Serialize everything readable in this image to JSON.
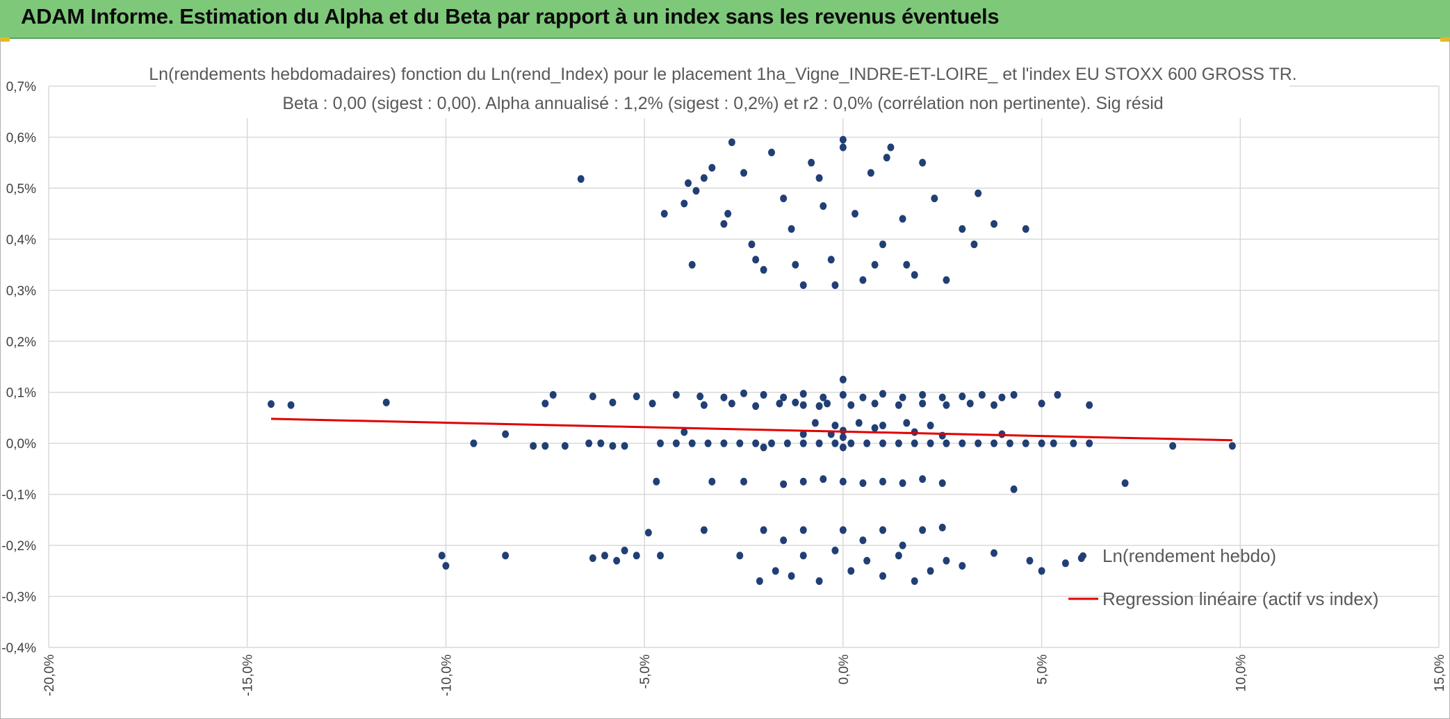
{
  "banner": {
    "title": "ADAM Informe. Estimation du Alpha et du Beta par rapport à un index sans les revenus éventuels"
  },
  "chart_data": {
    "type": "scatter",
    "title": "Ln(rendements hebdomadaires) fonction du Ln(rend_Index) pour le placement 1ha_Vigne_INDRE-ET-LOIRE_ et l'index EU STOXX 600 GROSS TR.",
    "subtitle": "Beta : 0,00 (sigest : 0,00). Alpha annualisé : 1,2% (sigest : 0,2%) et r2 : 0,0% (corrélation non pertinente). Sig résid",
    "xlim": [
      -0.2,
      0.15
    ],
    "ylim": [
      -0.004,
      0.007
    ],
    "x_ticks": [
      -0.2,
      -0.15,
      -0.1,
      -0.05,
      0.0,
      0.05,
      0.1,
      0.15
    ],
    "x_tick_labels": [
      "-20,0%",
      "-15,0%",
      "-10,0%",
      "-5,0%",
      "0,0%",
      "5,0%",
      "10,0%",
      "15,0%"
    ],
    "y_ticks": [
      0.007,
      0.006,
      0.005,
      0.004,
      0.003,
      0.002,
      0.001,
      0.0,
      -0.001,
      -0.002,
      -0.003,
      -0.004
    ],
    "y_tick_labels": [
      "0,7%",
      "0,6%",
      "0,5%",
      "0,4%",
      "0,3%",
      "0,2%",
      "0,1%",
      "0,0%",
      "-0,1%",
      "-0,2%",
      "-0,3%",
      "-0,4%"
    ],
    "grid": true,
    "legend_position": "bottom-right",
    "colors": {
      "points": "#213f74",
      "regression": "#e00000"
    },
    "series": [
      {
        "name": "Ln(rendement hebdo)",
        "kind": "scatter",
        "points": [
          [
            -0.144,
            0.00077
          ],
          [
            -0.139,
            0.00075
          ],
          [
            -0.115,
            0.0008
          ],
          [
            -0.075,
            0.00078
          ],
          [
            -0.073,
            0.00095
          ],
          [
            -0.063,
            0.00092
          ],
          [
            -0.058,
            0.0008
          ],
          [
            -0.052,
            0.00092
          ],
          [
            -0.048,
            0.00078
          ],
          [
            -0.042,
            0.00095
          ],
          [
            -0.036,
            0.00092
          ],
          [
            -0.03,
            0.0009
          ],
          [
            -0.025,
            0.00098
          ],
          [
            -0.02,
            0.00095
          ],
          [
            -0.015,
            0.0009
          ],
          [
            -0.01,
            0.00097
          ],
          [
            -0.005,
            0.0009
          ],
          [
            0.0,
            0.00095
          ],
          [
            0.005,
            0.0009
          ],
          [
            0.01,
            0.00097
          ],
          [
            0.015,
            0.0009
          ],
          [
            0.02,
            0.00095
          ],
          [
            0.025,
            0.0009
          ],
          [
            0.03,
            0.00092
          ],
          [
            0.035,
            0.00095
          ],
          [
            0.04,
            0.0009
          ],
          [
            0.043,
            0.00095
          ],
          [
            0.05,
            0.00078
          ],
          [
            0.054,
            0.00095
          ],
          [
            0.062,
            0.00075
          ],
          [
            -0.035,
            0.00075
          ],
          [
            -0.028,
            0.00078
          ],
          [
            -0.022,
            0.00073
          ],
          [
            -0.016,
            0.00078
          ],
          [
            -0.01,
            0.00075
          ],
          [
            -0.004,
            0.00078
          ],
          [
            0.002,
            0.00075
          ],
          [
            0.008,
            0.00078
          ],
          [
            0.014,
            0.00075
          ],
          [
            0.02,
            0.00078
          ],
          [
            0.026,
            0.00075
          ],
          [
            0.032,
            0.00078
          ],
          [
            0.038,
            0.00075
          ],
          [
            -0.012,
            0.0008
          ],
          [
            -0.006,
            0.00073
          ],
          [
            0.0,
            0.00125
          ],
          [
            -0.007,
            0.0004
          ],
          [
            -0.002,
            0.00035
          ],
          [
            0.004,
            0.0004
          ],
          [
            0.01,
            0.00035
          ],
          [
            0.016,
            0.0004
          ],
          [
            0.022,
            0.00035
          ],
          [
            0.0,
            0.00025
          ],
          [
            0.008,
            0.0003
          ],
          [
            0.018,
            0.00022
          ],
          [
            -0.003,
            0.00018
          ],
          [
            -0.01,
            0.00018
          ],
          [
            0.025,
            0.00015
          ],
          [
            0.0,
            0.00012
          ],
          [
            -0.093,
            0.0
          ],
          [
            -0.085,
            0.00018
          ],
          [
            -0.078,
            -5e-05
          ],
          [
            -0.075,
            -5e-05
          ],
          [
            -0.07,
            -5e-05
          ],
          [
            -0.064,
            0.0
          ],
          [
            -0.061,
            0.0
          ],
          [
            -0.058,
            -5e-05
          ],
          [
            -0.055,
            -5e-05
          ],
          [
            -0.046,
            0.0
          ],
          [
            -0.042,
            0.0
          ],
          [
            -0.038,
            0.0
          ],
          [
            -0.034,
            0.0
          ],
          [
            -0.03,
            0.0
          ],
          [
            -0.026,
            0.0
          ],
          [
            -0.022,
            0.0
          ],
          [
            -0.018,
            0.0
          ],
          [
            -0.014,
            0.0
          ],
          [
            -0.01,
            0.0
          ],
          [
            -0.006,
            0.0
          ],
          [
            -0.002,
            0.0
          ],
          [
            0.002,
            0.0
          ],
          [
            0.006,
            0.0
          ],
          [
            0.01,
            0.0
          ],
          [
            0.014,
            0.0
          ],
          [
            0.018,
            0.0
          ],
          [
            0.022,
            0.0
          ],
          [
            0.026,
            0.0
          ],
          [
            0.03,
            0.0
          ],
          [
            0.034,
            0.0
          ],
          [
            0.038,
            0.0
          ],
          [
            0.042,
            0.0
          ],
          [
            0.046,
            0.0
          ],
          [
            0.05,
            0.0
          ],
          [
            0.053,
            0.0
          ],
          [
            0.058,
            0.0
          ],
          [
            0.062,
            0.0
          ],
          [
            0.083,
            -5e-05
          ],
          [
            0.098,
            -5e-05
          ],
          [
            -0.04,
            0.00022
          ],
          [
            0.04,
            0.00018
          ],
          [
            0.0,
            -8e-05
          ],
          [
            -0.02,
            -8e-05
          ],
          [
            -0.047,
            -0.00075
          ],
          [
            -0.033,
            -0.00075
          ],
          [
            -0.025,
            -0.00075
          ],
          [
            -0.015,
            -0.0008
          ],
          [
            -0.01,
            -0.00075
          ],
          [
            -0.005,
            -0.0007
          ],
          [
            0.0,
            -0.00075
          ],
          [
            0.005,
            -0.00078
          ],
          [
            0.01,
            -0.00075
          ],
          [
            0.015,
            -0.00078
          ],
          [
            0.02,
            -0.0007
          ],
          [
            0.025,
            -0.00078
          ],
          [
            0.043,
            -0.0009
          ],
          [
            0.071,
            -0.00078
          ],
          [
            -0.101,
            -0.0022
          ],
          [
            -0.1,
            -0.0024
          ],
          [
            -0.085,
            -0.0022
          ],
          [
            -0.063,
            -0.00225
          ],
          [
            -0.06,
            -0.0022
          ],
          [
            -0.057,
            -0.0023
          ],
          [
            -0.055,
            -0.0021
          ],
          [
            -0.052,
            -0.0022
          ],
          [
            -0.049,
            -0.00175
          ],
          [
            -0.046,
            -0.0022
          ],
          [
            -0.035,
            -0.0017
          ],
          [
            -0.026,
            -0.0022
          ],
          [
            -0.021,
            -0.0027
          ],
          [
            -0.017,
            -0.0025
          ],
          [
            -0.013,
            -0.0026
          ],
          [
            -0.01,
            -0.0022
          ],
          [
            -0.006,
            -0.0027
          ],
          [
            -0.002,
            -0.0021
          ],
          [
            0.002,
            -0.0025
          ],
          [
            0.006,
            -0.0023
          ],
          [
            0.01,
            -0.0026
          ],
          [
            0.014,
            -0.0022
          ],
          [
            0.018,
            -0.0027
          ],
          [
            0.022,
            -0.0025
          ],
          [
            0.026,
            -0.0023
          ],
          [
            0.03,
            -0.0024
          ],
          [
            0.038,
            -0.00215
          ],
          [
            0.047,
            -0.0023
          ],
          [
            0.05,
            -0.0025
          ],
          [
            0.056,
            -0.00235
          ],
          [
            0.06,
            -0.00225
          ],
          [
            -0.02,
            -0.0017
          ],
          [
            -0.01,
            -0.0017
          ],
          [
            0.0,
            -0.0017
          ],
          [
            0.01,
            -0.0017
          ],
          [
            0.02,
            -0.0017
          ],
          [
            0.025,
            -0.00165
          ],
          [
            -0.015,
            -0.0019
          ],
          [
            0.005,
            -0.0019
          ],
          [
            0.015,
            -0.002
          ],
          [
            -0.066,
            0.00518
          ],
          [
            -0.045,
            0.0045
          ],
          [
            -0.04,
            0.0047
          ],
          [
            -0.039,
            0.0051
          ],
          [
            -0.037,
            0.00495
          ],
          [
            -0.035,
            0.0052
          ],
          [
            -0.033,
            0.0054
          ],
          [
            -0.03,
            0.0043
          ],
          [
            -0.028,
            0.0059
          ],
          [
            -0.025,
            0.0053
          ],
          [
            -0.023,
            0.0039
          ],
          [
            -0.02,
            0.0034
          ],
          [
            -0.018,
            0.0057
          ],
          [
            -0.015,
            0.0048
          ],
          [
            -0.013,
            0.0042
          ],
          [
            -0.01,
            0.0031
          ],
          [
            -0.008,
            0.0055
          ],
          [
            -0.005,
            0.00465
          ],
          [
            -0.003,
            0.0036
          ],
          [
            0.0,
            0.00595
          ],
          [
            0.003,
            0.0045
          ],
          [
            0.005,
            0.0032
          ],
          [
            0.007,
            0.0053
          ],
          [
            0.01,
            0.0039
          ],
          [
            0.012,
            0.0058
          ],
          [
            0.015,
            0.0044
          ],
          [
            0.018,
            0.0033
          ],
          [
            0.02,
            0.0055
          ],
          [
            0.023,
            0.0048
          ],
          [
            0.026,
            0.0032
          ],
          [
            0.03,
            0.0042
          ],
          [
            0.033,
            0.0039
          ],
          [
            0.034,
            0.0049
          ],
          [
            0.038,
            0.0043
          ],
          [
            0.046,
            0.0042
          ],
          [
            -0.038,
            0.0035
          ],
          [
            -0.029,
            0.0045
          ],
          [
            -0.022,
            0.0036
          ],
          [
            -0.012,
            0.0035
          ],
          [
            0.008,
            0.0035
          ],
          [
            0.016,
            0.0035
          ],
          [
            -0.002,
            0.0031
          ],
          [
            0.0,
            0.0058
          ],
          [
            0.011,
            0.0056
          ],
          [
            -0.006,
            0.0052
          ]
        ]
      },
      {
        "name": "Regression linéaire (actif vs index)",
        "kind": "line",
        "points": [
          [
            -0.144,
            0.00048
          ],
          [
            0.098,
            6e-05
          ]
        ]
      }
    ]
  }
}
